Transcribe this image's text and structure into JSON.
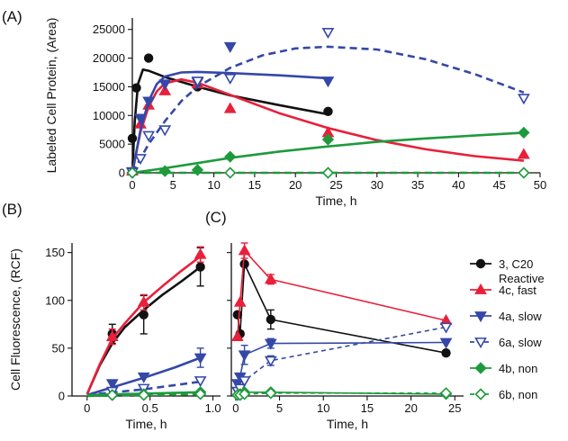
{
  "colors": {
    "black": "#111111",
    "red": "#e8203a",
    "blue": "#3548a8",
    "green": "#1e9a3c"
  },
  "panels": {
    "a": "(A)",
    "b": "(B)",
    "c": "(C)"
  },
  "legend": [
    {
      "line1": "3, C20",
      "line2": "Reactive",
      "color": "#111111",
      "marker": "circle",
      "dashed": false,
      "open": false
    },
    {
      "line1": "4c, fast",
      "line2": "",
      "color": "#e8203a",
      "marker": "triangle-up",
      "dashed": false,
      "open": false
    },
    {
      "line1": "4a, slow",
      "line2": "",
      "color": "#3548a8",
      "marker": "triangle-down",
      "dashed": false,
      "open": false
    },
    {
      "line1": "6a, slow",
      "line2": "",
      "color": "#3548a8",
      "marker": "triangle-down",
      "dashed": true,
      "open": true
    },
    {
      "line1": "4b, non",
      "line2": "",
      "color": "#1e9a3c",
      "marker": "diamond",
      "dashed": false,
      "open": false
    },
    {
      "line1": "6b, non",
      "line2": "",
      "color": "#1e9a3c",
      "marker": "diamond",
      "dashed": true,
      "open": true
    }
  ],
  "chart_data": [
    {
      "id": "A",
      "type": "scatter",
      "xlabel": "Time, h",
      "ylabel": "Labeled Cell Protein, (Area)",
      "xlim": [
        0,
        50
      ],
      "ylim": [
        0,
        27000
      ],
      "xticks": [
        0,
        5,
        10,
        15,
        20,
        25,
        30,
        35,
        40,
        45,
        50
      ],
      "yticks": [
        0,
        5000,
        10000,
        15000,
        20000,
        25000
      ],
      "series": [
        {
          "name": "3, C20 Reactive",
          "color": "#111111",
          "marker": "circle",
          "open": false,
          "dashed": false,
          "points": [
            [
              0,
              6000
            ],
            [
              0.5,
              14800
            ],
            [
              2,
              20000
            ],
            [
              8,
              15000
            ],
            [
              24,
              10700
            ]
          ],
          "curve": [
            [
              0,
              0
            ],
            [
              0.3,
              9000
            ],
            [
              0.7,
              15500
            ],
            [
              1.3,
              18000
            ],
            [
              2,
              17800
            ],
            [
              4,
              16700
            ],
            [
              8,
              15000
            ],
            [
              12,
              13500
            ],
            [
              18,
              11800
            ],
            [
              24,
              10200
            ]
          ]
        },
        {
          "name": "4c, fast",
          "color": "#e8203a",
          "marker": "triangle-up",
          "open": false,
          "dashed": false,
          "points": [
            [
              0,
              300
            ],
            [
              1,
              8500
            ],
            [
              2,
              11800
            ],
            [
              4,
              14300
            ],
            [
              8,
              15500
            ],
            [
              12,
              11200
            ],
            [
              24,
              7000
            ],
            [
              48,
              3200
            ]
          ],
          "curve": [
            [
              0,
              0
            ],
            [
              1,
              7200
            ],
            [
              2,
              11500
            ],
            [
              3,
              14200
            ],
            [
              4,
              15600
            ],
            [
              6,
              16300
            ],
            [
              8,
              15700
            ],
            [
              12,
              13600
            ],
            [
              18,
              10400
            ],
            [
              24,
              7800
            ],
            [
              30,
              5700
            ],
            [
              36,
              4100
            ],
            [
              42,
              2900
            ],
            [
              48,
              2100
            ]
          ]
        },
        {
          "name": "4a, slow",
          "color": "#3548a8",
          "marker": "triangle-down",
          "open": false,
          "dashed": false,
          "points": [
            [
              0,
              200
            ],
            [
              1,
              9500
            ],
            [
              2,
              12500
            ],
            [
              4,
              15500
            ],
            [
              8,
              15800
            ],
            [
              12,
              22000
            ],
            [
              24,
              16000
            ]
          ],
          "curve": [
            [
              0,
              0
            ],
            [
              1,
              7500
            ],
            [
              2,
              12500
            ],
            [
              3,
              15500
            ],
            [
              4,
              16800
            ],
            [
              6,
              17500
            ],
            [
              8,
              17600
            ],
            [
              12,
              17400
            ],
            [
              18,
              17000
            ],
            [
              24,
              16500
            ]
          ]
        },
        {
          "name": "6a, slow",
          "color": "#3548a8",
          "marker": "triangle-down",
          "open": true,
          "dashed": true,
          "points": [
            [
              0,
              100
            ],
            [
              1,
              2500
            ],
            [
              2,
              6500
            ],
            [
              4,
              7500
            ],
            [
              8,
              16000
            ],
            [
              12,
              16500
            ],
            [
              24,
              24500
            ],
            [
              48,
              13000
            ]
          ],
          "curve": [
            [
              0,
              0
            ],
            [
              1,
              2500
            ],
            [
              2,
              5000
            ],
            [
              4,
              9000
            ],
            [
              6,
              12500
            ],
            [
              8,
              15000
            ],
            [
              12,
              18300
            ],
            [
              16,
              20500
            ],
            [
              20,
              21700
            ],
            [
              24,
              22000
            ],
            [
              30,
              21500
            ],
            [
              36,
              19800
            ],
            [
              42,
              17200
            ],
            [
              48,
              14000
            ]
          ]
        },
        {
          "name": "4b, non",
          "color": "#1e9a3c",
          "marker": "diamond",
          "open": false,
          "dashed": false,
          "points": [
            [
              0,
              0
            ],
            [
              4,
              300
            ],
            [
              8,
              500
            ],
            [
              12,
              2800
            ],
            [
              24,
              5800
            ],
            [
              48,
              7000
            ]
          ],
          "curve": [
            [
              0,
              0
            ],
            [
              4,
              800
            ],
            [
              8,
              1700
            ],
            [
              12,
              2600
            ],
            [
              18,
              3700
            ],
            [
              24,
              4600
            ],
            [
              30,
              5400
            ],
            [
              36,
              6000
            ],
            [
              42,
              6500
            ],
            [
              48,
              7000
            ]
          ]
        },
        {
          "name": "6b, non",
          "color": "#1e9a3c",
          "marker": "diamond",
          "open": true,
          "dashed": true,
          "points": [
            [
              0,
              0
            ],
            [
              12,
              0
            ],
            [
              24,
              0
            ],
            [
              48,
              0
            ]
          ],
          "curve": [
            [
              0,
              0
            ],
            [
              48,
              0
            ]
          ]
        }
      ]
    },
    {
      "id": "B",
      "type": "scatter",
      "xlabel": "Time, h",
      "ylabel": "Cell Fluorescence, (RCF)",
      "xlim": [
        -0.12,
        1.06
      ],
      "ylim": [
        0,
        160
      ],
      "xticks": [
        0,
        0.5,
        1.0
      ],
      "xtick_labels": [
        "0",
        "0.5",
        "1.0"
      ],
      "yticks": [
        0,
        50,
        100,
        150
      ],
      "series": [
        {
          "name": "3, C20 Reactive",
          "color": "#111111",
          "marker": "circle",
          "open": false,
          "dashed": false,
          "points": [
            [
              0.2,
              65
            ],
            [
              0.45,
              85
            ],
            [
              0.9,
              135
            ]
          ],
          "errors": [
            10,
            20,
            20
          ],
          "curve": [
            [
              0,
              2
            ],
            [
              0.1,
              32
            ],
            [
              0.2,
              55
            ],
            [
              0.3,
              72
            ],
            [
              0.45,
              90
            ],
            [
              0.6,
              106
            ],
            [
              0.75,
              120
            ],
            [
              0.9,
              135
            ]
          ]
        },
        {
          "name": "4c, fast",
          "color": "#e8203a",
          "marker": "triangle-up",
          "open": false,
          "dashed": false,
          "points": [
            [
              0.2,
              62
            ],
            [
              0.45,
              98
            ],
            [
              0.9,
              148
            ]
          ],
          "errors": [
            8,
            8,
            8
          ],
          "curve": [
            [
              0,
              2
            ],
            [
              0.1,
              33
            ],
            [
              0.2,
              60
            ],
            [
              0.3,
              76
            ],
            [
              0.45,
              98
            ],
            [
              0.6,
              115
            ],
            [
              0.75,
              131
            ],
            [
              0.9,
              146
            ]
          ]
        },
        {
          "name": "4a, slow",
          "color": "#3548a8",
          "marker": "triangle-down",
          "open": false,
          "dashed": false,
          "points": [
            [
              0.2,
              13
            ],
            [
              0.45,
              20
            ],
            [
              0.9,
              40
            ]
          ],
          "errors": [
            0,
            0,
            10
          ],
          "curve": [
            [
              0,
              1
            ],
            [
              0.2,
              9
            ],
            [
              0.45,
              19
            ],
            [
              0.7,
              30
            ],
            [
              0.9,
              40
            ]
          ]
        },
        {
          "name": "6a, slow",
          "color": "#3548a8",
          "marker": "triangle-down",
          "open": true,
          "dashed": true,
          "points": [
            [
              0.2,
              5
            ],
            [
              0.45,
              8
            ],
            [
              0.9,
              16
            ]
          ],
          "errors": [
            0,
            0,
            0
          ],
          "curve": [
            [
              0,
              1
            ],
            [
              0.45,
              7
            ],
            [
              0.9,
              15
            ]
          ]
        },
        {
          "name": "4b, non",
          "color": "#1e9a3c",
          "marker": "diamond",
          "open": false,
          "dashed": false,
          "points": [
            [
              0.2,
              1
            ],
            [
              0.45,
              2
            ],
            [
              0.9,
              4
            ]
          ],
          "errors": [
            0,
            0,
            0
          ],
          "curve": [
            [
              0,
              1
            ],
            [
              0.9,
              4
            ]
          ]
        },
        {
          "name": "6b, non",
          "color": "#1e9a3c",
          "marker": "diamond",
          "open": true,
          "dashed": true,
          "points": [
            [
              0.2,
              1
            ],
            [
              0.45,
              1
            ],
            [
              0.9,
              2
            ]
          ],
          "errors": [
            0,
            0,
            0
          ],
          "curve": [
            [
              0,
              0
            ],
            [
              0.9,
              2
            ]
          ]
        }
      ]
    },
    {
      "id": "C",
      "type": "line",
      "xlabel": "Time, h",
      "ylabel": "",
      "xlim": [
        -0.5,
        26
      ],
      "ylim": [
        0,
        160
      ],
      "xticks": [
        0,
        5,
        10,
        15,
        20,
        25
      ],
      "yticks": [
        0,
        50,
        100,
        150
      ],
      "series": [
        {
          "name": "3, C20 Reactive",
          "color": "#111111",
          "marker": "circle",
          "open": false,
          "dashed": false,
          "points": [
            [
              0.2,
              85
            ],
            [
              0.5,
              65
            ],
            [
              1,
              138
            ],
            [
              4,
              80
            ],
            [
              24,
              45
            ]
          ],
          "errors": [
            0,
            0,
            0,
            10,
            0
          ]
        },
        {
          "name": "4c, fast",
          "color": "#e8203a",
          "marker": "triangle-up",
          "open": false,
          "dashed": false,
          "points": [
            [
              0.2,
              62
            ],
            [
              0.5,
              98
            ],
            [
              1,
              152
            ],
            [
              4,
              122
            ],
            [
              24,
              79
            ]
          ],
          "errors": [
            0,
            0,
            8,
            5,
            0
          ]
        },
        {
          "name": "4a, slow",
          "color": "#3548a8",
          "marker": "triangle-down",
          "open": false,
          "dashed": false,
          "points": [
            [
              0.2,
              13
            ],
            [
              0.5,
              20
            ],
            [
              1,
              43
            ],
            [
              4,
              55
            ],
            [
              24,
              56
            ]
          ],
          "errors": [
            0,
            0,
            10,
            5,
            0
          ]
        },
        {
          "name": "6a, slow",
          "color": "#3548a8",
          "marker": "triangle-down",
          "open": true,
          "dashed": true,
          "points": [
            [
              0.2,
              5
            ],
            [
              0.5,
              8
            ],
            [
              1,
              16
            ],
            [
              4,
              37
            ],
            [
              24,
              72
            ]
          ],
          "errors": [
            0,
            0,
            0,
            5,
            0
          ]
        },
        {
          "name": "4b, non",
          "color": "#1e9a3c",
          "marker": "diamond",
          "open": false,
          "dashed": false,
          "points": [
            [
              0.2,
              1
            ],
            [
              0.5,
              2
            ],
            [
              1,
              4
            ],
            [
              4,
              4
            ],
            [
              24,
              2
            ]
          ],
          "errors": [
            0,
            0,
            0,
            0,
            0
          ]
        },
        {
          "name": "6b, non",
          "color": "#1e9a3c",
          "marker": "diamond",
          "open": true,
          "dashed": true,
          "points": [
            [
              0.2,
              1
            ],
            [
              0.5,
              1
            ],
            [
              1,
              2
            ],
            [
              4,
              3
            ],
            [
              24,
              3
            ]
          ],
          "errors": [
            0,
            0,
            0,
            0,
            0
          ]
        }
      ]
    }
  ]
}
